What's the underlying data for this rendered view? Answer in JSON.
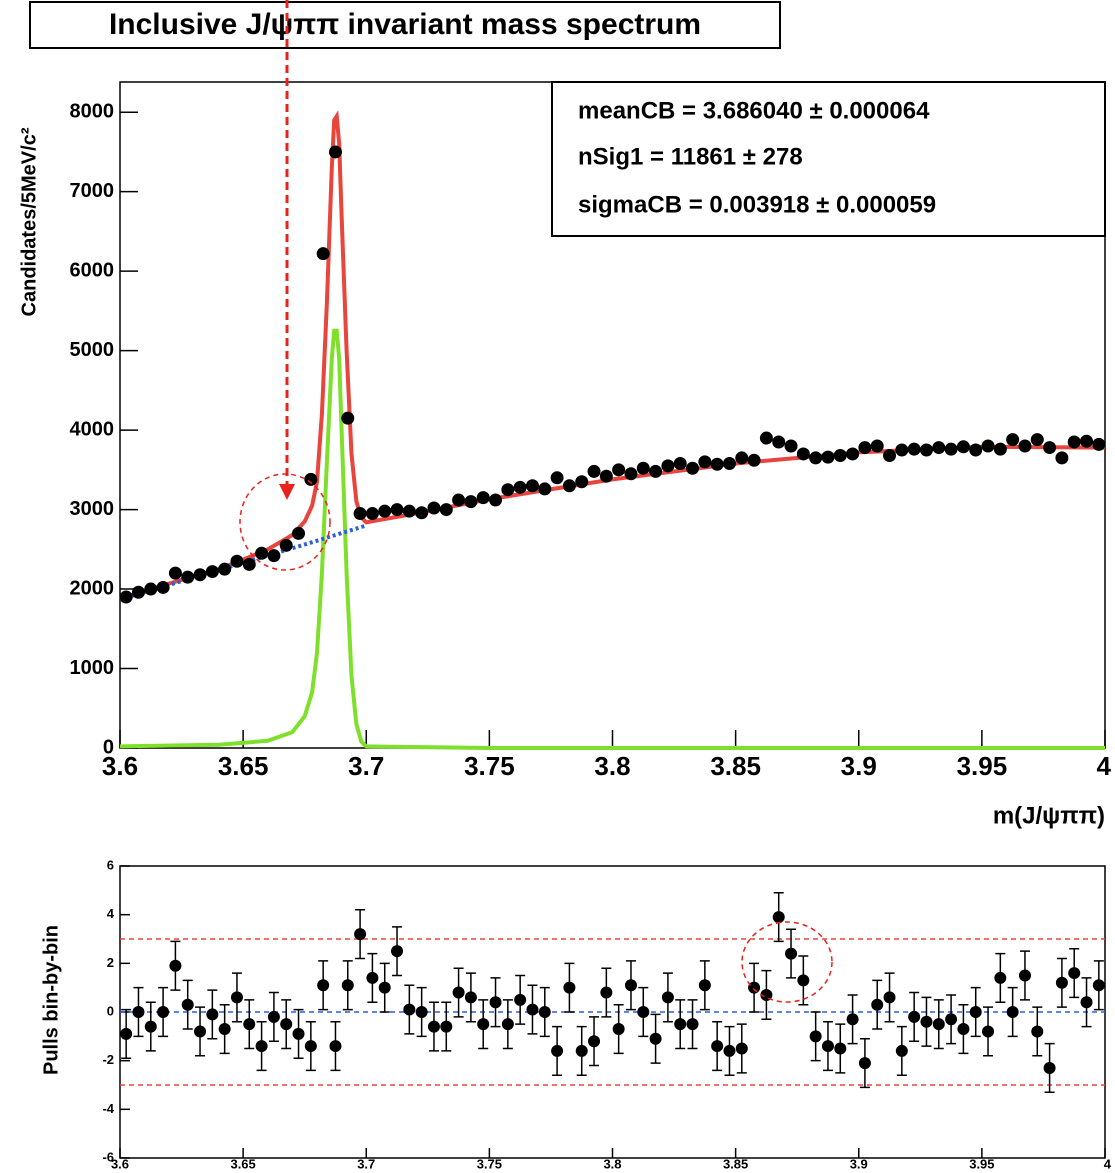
{
  "chart_data": [
    {
      "type": "scatter",
      "title": "Inclusive J/ψππ invariant mass spectrum",
      "xlabel": "m(J/ψππ)",
      "ylabel": "Candidates/5MeV/c²",
      "annotations": [
        "meanCB =  3.686040 ± 0.000064",
        "nSig1 =  11861 ± 278",
        "sigmaCB =  0.003918  ± 0.000059"
      ],
      "xlim": [
        3.6,
        4.0
      ],
      "xticks": [
        3.6,
        3.65,
        3.7,
        3.75,
        3.8,
        3.85,
        3.9,
        3.95,
        4
      ],
      "ylim": [
        0,
        8380
      ],
      "yticks": [
        0,
        1000,
        2000,
        3000,
        4000,
        5000,
        6000,
        7000,
        8000
      ],
      "series": [
        {
          "color": "#e8453c",
          "line": "solid",
          "x": [
            3.6,
            3.62,
            3.64,
            3.65,
            3.66,
            3.67,
            3.675,
            3.678,
            3.68,
            3.682,
            3.684,
            3.686,
            3.687,
            3.688,
            3.689,
            3.69,
            3.692,
            3.694,
            3.696,
            3.698,
            3.7,
            3.72,
            3.75,
            3.8,
            3.85,
            3.9,
            3.95,
            4.0
          ],
          "values": [
            1880,
            2070,
            2250,
            2370,
            2500,
            2680,
            2850,
            3050,
            3350,
            4200,
            5600,
            7300,
            7900,
            7950,
            7600,
            6700,
            5000,
            3700,
            3100,
            2900,
            2840,
            2950,
            3130,
            3380,
            3580,
            3720,
            3790,
            3780
          ]
        },
        {
          "color": "#7ee02b",
          "line": "solid",
          "x": [
            3.6,
            3.64,
            3.66,
            3.67,
            3.675,
            3.678,
            3.68,
            3.682,
            3.684,
            3.686,
            3.687,
            3.688,
            3.689,
            3.69,
            3.692,
            3.694,
            3.696,
            3.698,
            3.7,
            3.75,
            4.0
          ],
          "values": [
            20,
            40,
            90,
            200,
            400,
            700,
            1200,
            2200,
            3600,
            4900,
            5250,
            5250,
            4900,
            4000,
            2200,
            900,
            300,
            80,
            20,
            0,
            0
          ]
        },
        {
          "color": "#2b5fe0",
          "line": "dotted",
          "x": [
            3.6,
            3.625,
            3.65,
            3.675,
            3.7
          ],
          "values": [
            1870,
            2100,
            2330,
            2560,
            2800
          ]
        },
        {
          "color": "#000000",
          "marker": "circle",
          "x": [
            3.6025,
            3.6075,
            3.6125,
            3.6175,
            3.6225,
            3.6275,
            3.6325,
            3.6375,
            3.6425,
            3.6475,
            3.6525,
            3.6575,
            3.6625,
            3.6675,
            3.6725,
            3.6775,
            3.6825,
            3.6875,
            3.6925,
            3.6975,
            3.7025,
            3.7075,
            3.7125,
            3.7175,
            3.7225,
            3.7275,
            3.7325,
            3.7375,
            3.7425,
            3.7475,
            3.7525,
            3.7575,
            3.7625,
            3.7675,
            3.7725,
            3.7775,
            3.7825,
            3.7875,
            3.7925,
            3.7975,
            3.8025,
            3.8075,
            3.8125,
            3.8175,
            3.8225,
            3.8275,
            3.8325,
            3.8375,
            3.8425,
            3.8475,
            3.8525,
            3.8575,
            3.8625,
            3.8675,
            3.8725,
            3.8775,
            3.8825,
            3.8875,
            3.8925,
            3.8975,
            3.9025,
            3.9075,
            3.9125,
            3.9175,
            3.9225,
            3.9275,
            3.9325,
            3.9375,
            3.9425,
            3.9475,
            3.9525,
            3.9575,
            3.9625,
            3.9675,
            3.9725,
            3.9775,
            3.9825,
            3.9875,
            3.9925,
            3.9975
          ],
          "values": [
            1900,
            1960,
            2000,
            2020,
            2200,
            2150,
            2180,
            2220,
            2250,
            2350,
            2310,
            2450,
            2420,
            2550,
            2700,
            3380,
            6220,
            7500,
            4150,
            2950,
            2950,
            2980,
            3000,
            2980,
            2960,
            3020,
            3000,
            3120,
            3100,
            3150,
            3120,
            3250,
            3280,
            3300,
            3260,
            3400,
            3300,
            3350,
            3480,
            3420,
            3500,
            3450,
            3520,
            3480,
            3550,
            3580,
            3520,
            3600,
            3570,
            3580,
            3650,
            3620,
            3900,
            3850,
            3800,
            3700,
            3650,
            3660,
            3680,
            3700,
            3780,
            3800,
            3680,
            3750,
            3760,
            3750,
            3780,
            3760,
            3790,
            3750,
            3800,
            3760,
            3880,
            3800,
            3880,
            3780,
            3650,
            3850,
            3860,
            3820
          ]
        }
      ]
    },
    {
      "type": "scatter",
      "ylabel": "Pulls bin-by-bin",
      "xlim": [
        3.6,
        4.0
      ],
      "xticks": [
        3.6,
        3.65,
        3.7,
        3.75,
        3.8,
        3.85,
        3.9,
        3.95,
        4
      ],
      "ylim": [
        -6,
        6
      ],
      "yticks": [
        -6,
        -4,
        -2,
        0,
        2,
        4,
        6
      ],
      "hlines": [
        {
          "value": 3,
          "color": "#e8453c"
        },
        {
          "value": 0,
          "color": "#2b5fe0"
        },
        {
          "value": -3,
          "color": "#e8453c"
        }
      ],
      "series": [
        {
          "color": "#000000",
          "marker": "circle",
          "x": [
            3.6025,
            3.6075,
            3.6125,
            3.6175,
            3.6225,
            3.6275,
            3.6325,
            3.6375,
            3.6425,
            3.6475,
            3.6525,
            3.6575,
            3.6625,
            3.6675,
            3.6725,
            3.6775,
            3.6825,
            3.6875,
            3.6925,
            3.6975,
            3.7025,
            3.7075,
            3.7125,
            3.7175,
            3.7225,
            3.7275,
            3.7325,
            3.7375,
            3.7425,
            3.7475,
            3.7525,
            3.7575,
            3.7625,
            3.7675,
            3.7725,
            3.7775,
            3.7825,
            3.7875,
            3.7925,
            3.7975,
            3.8025,
            3.8075,
            3.8125,
            3.8175,
            3.8225,
            3.8275,
            3.8325,
            3.8375,
            3.8425,
            3.8475,
            3.8525,
            3.8575,
            3.8625,
            3.8675,
            3.8725,
            3.8775,
            3.8825,
            3.8875,
            3.8925,
            3.8975,
            3.9025,
            3.9075,
            3.9125,
            3.9175,
            3.9225,
            3.9275,
            3.9325,
            3.9375,
            3.9425,
            3.9475,
            3.9525,
            3.9575,
            3.9625,
            3.9675,
            3.9725,
            3.9775,
            3.9825,
            3.9875,
            3.9925,
            3.9975
          ],
          "values": [
            -0.9,
            0.0,
            -0.6,
            0.0,
            1.9,
            0.3,
            -0.8,
            -0.1,
            -0.7,
            0.6,
            -0.5,
            -1.4,
            -0.2,
            -0.5,
            -0.9,
            -1.4,
            1.1,
            -1.4,
            1.1,
            3.2,
            1.4,
            1.0,
            2.5,
            0.1,
            0.0,
            -0.6,
            -0.6,
            0.8,
            0.6,
            -0.5,
            0.4,
            -0.5,
            0.5,
            0.1,
            0.0,
            -1.6,
            1.0,
            -1.6,
            -1.2,
            0.8,
            -0.7,
            1.1,
            0.0,
            -1.1,
            0.6,
            -0.5,
            -0.5,
            1.1,
            -1.4,
            -1.6,
            -1.5,
            1.0,
            0.7,
            3.9,
            2.4,
            1.3,
            -1.0,
            -1.4,
            -1.5,
            -0.3,
            -2.1,
            0.3,
            0.6,
            -1.6,
            -0.2,
            -0.4,
            -0.5,
            -0.3,
            -0.7,
            0.0,
            -0.8,
            1.4,
            0.0,
            1.5,
            -0.8,
            -2.3,
            1.2,
            1.6,
            0.4,
            1.1
          ],
          "errors": [
            1,
            1,
            1,
            1,
            1,
            1,
            1,
            1,
            1,
            1,
            1,
            1,
            1,
            1,
            1,
            1,
            1,
            1,
            1,
            1,
            1,
            1,
            1,
            1,
            1,
            1,
            1,
            1,
            1,
            1,
            1,
            1,
            1,
            1,
            1,
            1,
            1,
            1,
            1,
            1,
            1,
            1,
            1,
            1,
            1,
            1,
            1,
            1,
            1,
            1,
            1,
            1,
            1,
            1,
            1,
            1,
            1,
            1,
            1,
            1,
            1,
            1,
            1,
            1,
            1,
            1,
            1,
            1,
            1,
            1,
            1,
            1,
            1,
            1,
            1,
            1,
            1,
            1,
            1,
            1
          ]
        }
      ]
    }
  ]
}
